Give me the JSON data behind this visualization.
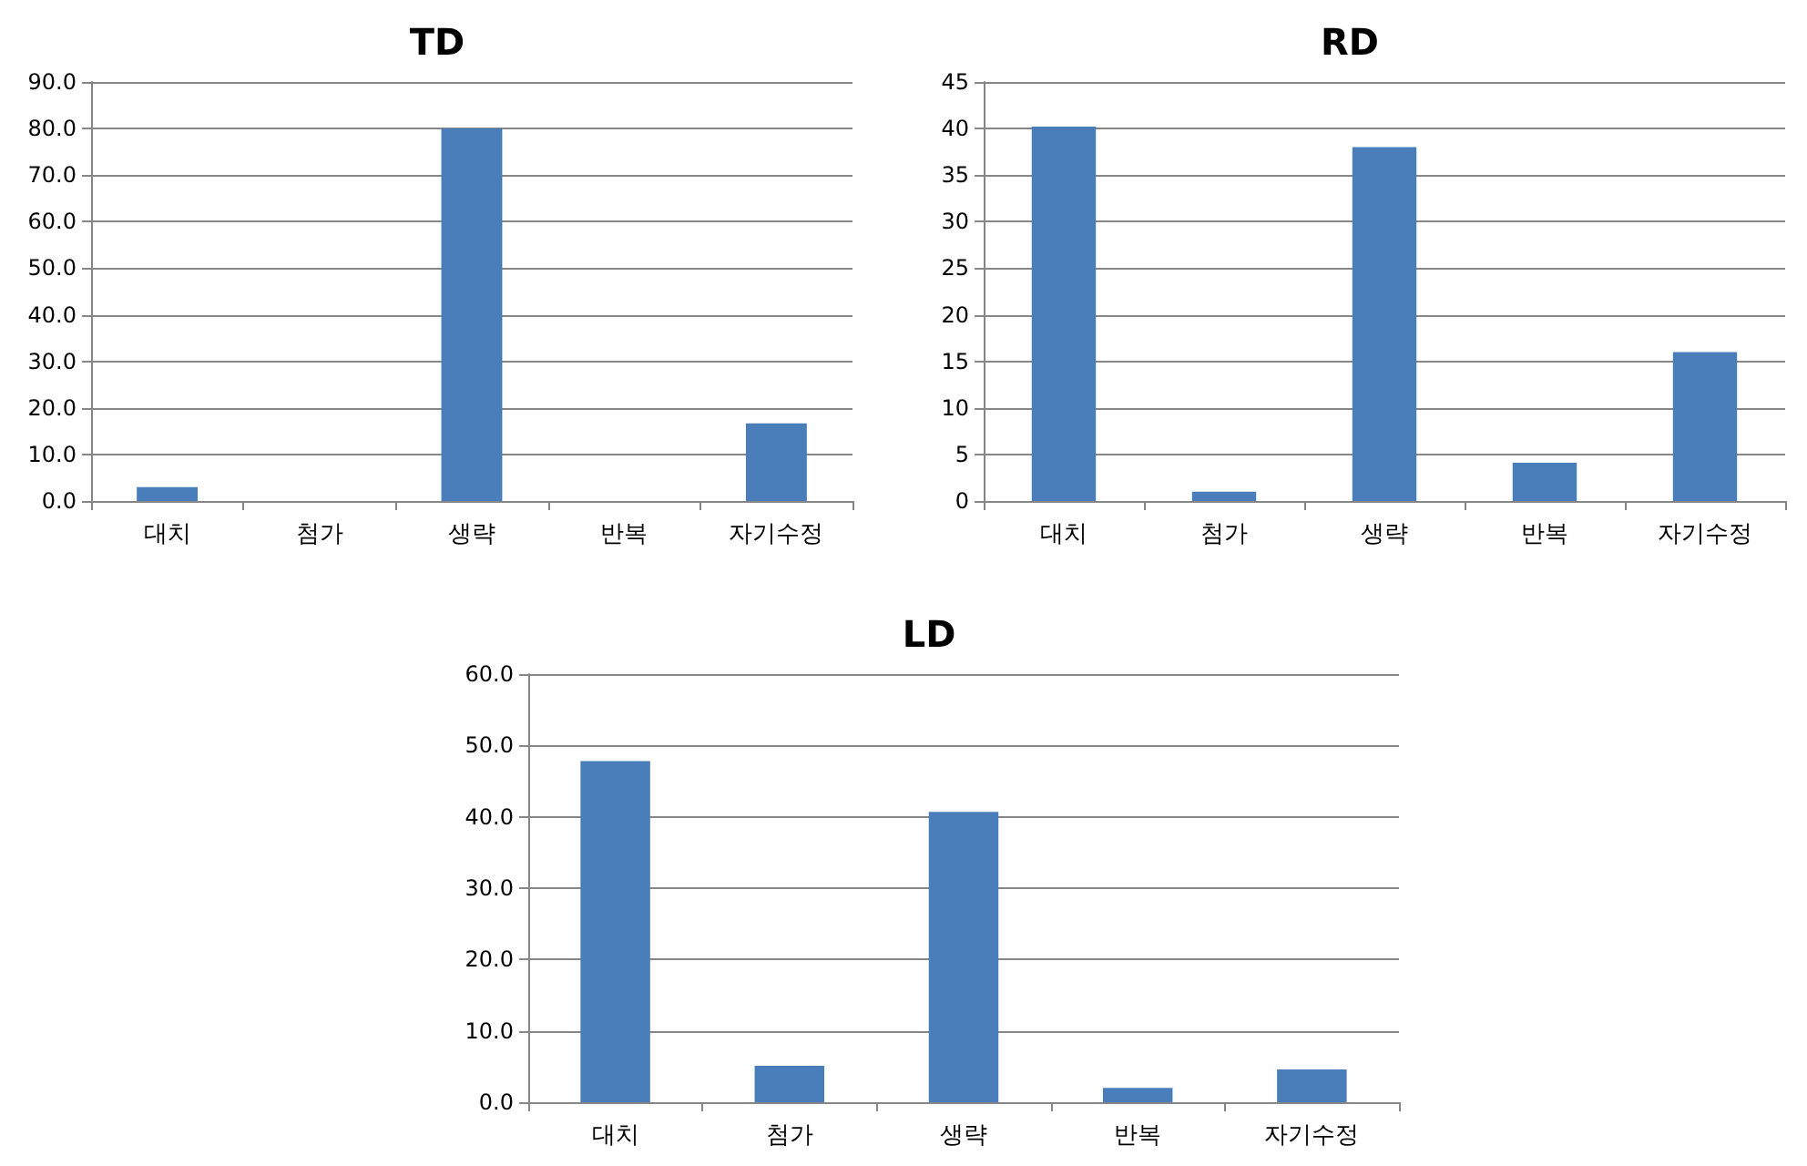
{
  "chart_data": [
    {
      "type": "bar",
      "title": "TD",
      "categories": [
        "대치",
        "첨가",
        "생략",
        "반복",
        "자기수정"
      ],
      "series": [
        {
          "color": "#4a7ebb",
          "values": [
            3.0,
            0,
            80.0,
            0,
            16.7
          ]
        }
      ],
      "ylim": [
        0,
        90
      ],
      "yticks": [
        {
          "value": 0,
          "label": "0.0"
        },
        {
          "value": 10,
          "label": "10.0"
        },
        {
          "value": 20,
          "label": "20.0"
        },
        {
          "value": 30,
          "label": "30.0"
        },
        {
          "value": 40,
          "label": "40.0"
        },
        {
          "value": 50,
          "label": "50.0"
        },
        {
          "value": 60,
          "label": "60.0"
        },
        {
          "value": 70,
          "label": "70.0"
        },
        {
          "value": 80,
          "label": "80.0"
        },
        {
          "value": 90,
          "label": "90.0"
        }
      ],
      "grid": "y"
    },
    {
      "type": "bar",
      "title": "RD",
      "categories": [
        "대치",
        "첨가",
        "생략",
        "반복",
        "자기수정"
      ],
      "series": [
        {
          "color": "#4a7ebb",
          "values": [
            40.2,
            1.0,
            38.0,
            4.1,
            16.0
          ]
        }
      ],
      "ylim": [
        0,
        45
      ],
      "yticks": [
        0,
        5,
        10,
        15,
        20,
        25,
        30,
        35,
        40,
        45
      ],
      "grid": "y"
    },
    {
      "type": "bar",
      "title": "LD",
      "categories": [
        "대치",
        "첨가",
        "생략",
        "반복",
        "자기수정"
      ],
      "series": [
        {
          "color": "#4a7ebb",
          "values": [
            47.8,
            5.1,
            40.7,
            2.0,
            4.6
          ]
        }
      ],
      "ylim": [
        0,
        60
      ],
      "yticks": [
        {
          "value": 0,
          "label": "0.0"
        },
        {
          "value": 10,
          "label": "10.0"
        },
        {
          "value": 20,
          "label": "20.0"
        },
        {
          "value": 30,
          "label": "30.0"
        },
        {
          "value": 40,
          "label": "40.0"
        },
        {
          "value": 50,
          "label": "50.0"
        },
        {
          "value": 60,
          "label": "60.0"
        }
      ],
      "grid": "y"
    }
  ]
}
